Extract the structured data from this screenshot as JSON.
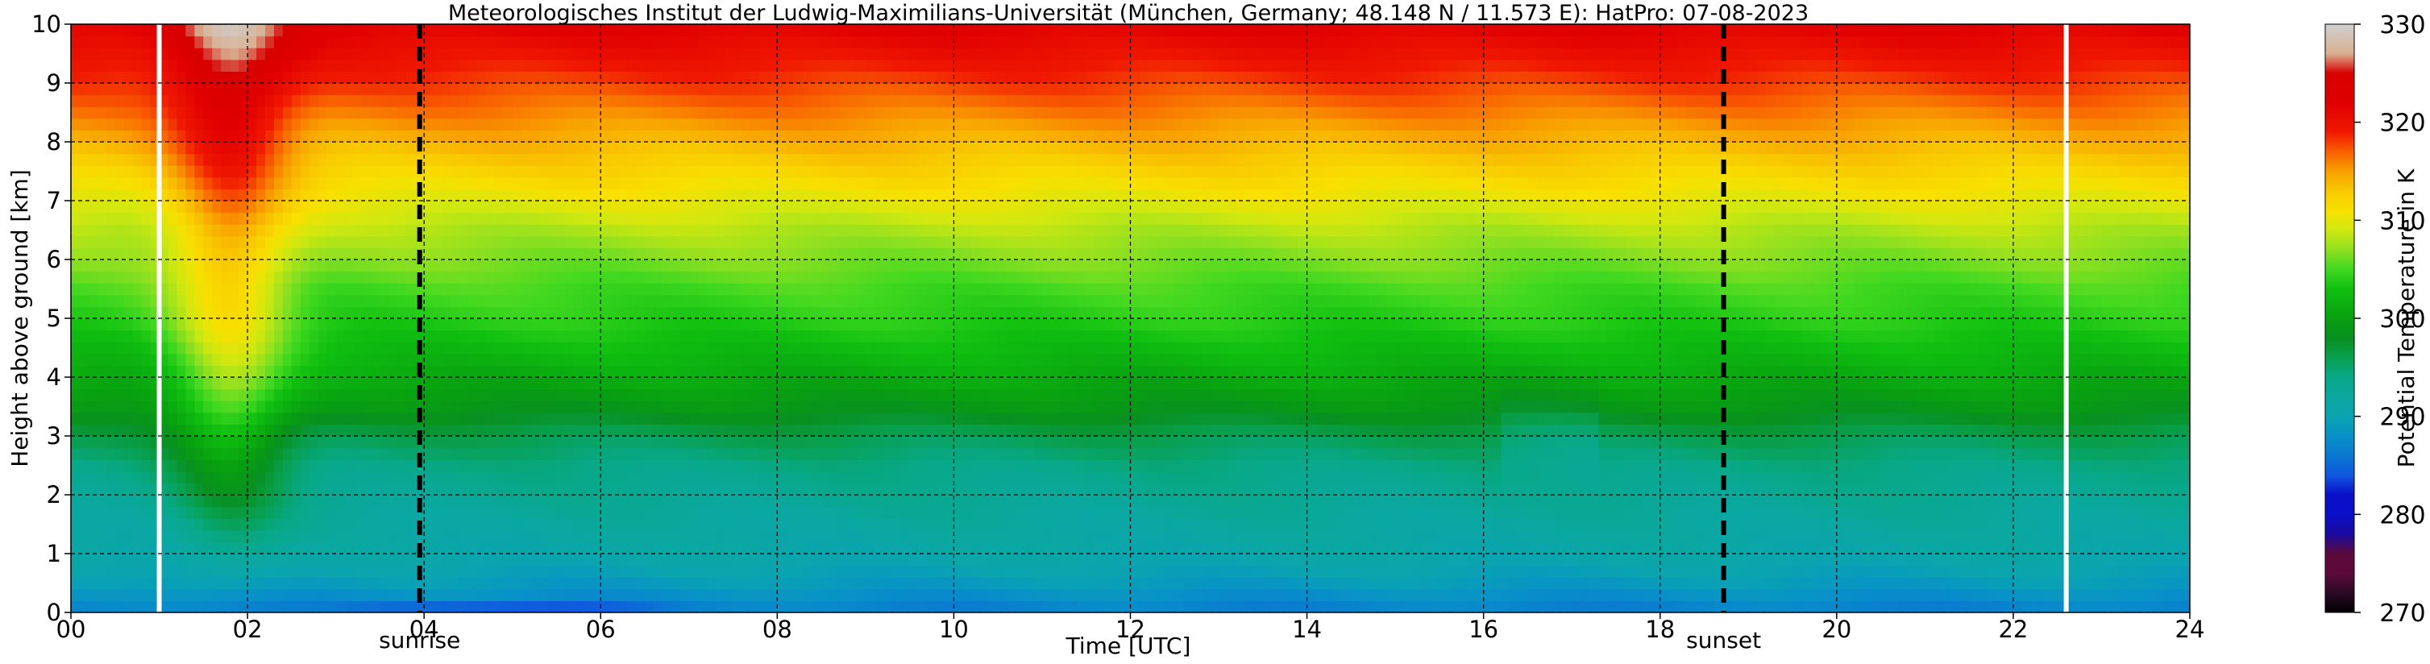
{
  "chart_data": {
    "type": "heatmap",
    "title": "Meteorologisches Institut der Ludwig-Maximilians-Universität (München, Germany; 48.148 N / 11.573 E):    HatPro: 07-08-2023",
    "xlabel": "Time [UTC]",
    "ylabel": "Height above ground [km]",
    "xlim": [
      0,
      24
    ],
    "ylim": [
      0,
      10
    ],
    "x_ticks": [
      0,
      2,
      4,
      6,
      8,
      10,
      12,
      14,
      16,
      18,
      20,
      22,
      24
    ],
    "x_tick_labels": [
      "00",
      "02",
      "04",
      "06",
      "08",
      "10",
      "12",
      "14",
      "16",
      "18",
      "20",
      "22",
      "24"
    ],
    "y_ticks": [
      0,
      1,
      2,
      3,
      4,
      5,
      6,
      7,
      8,
      9,
      10
    ],
    "y_tick_labels": [
      "0",
      "1",
      "2",
      "3",
      "4",
      "5",
      "6",
      "7",
      "8",
      "9",
      "10"
    ],
    "grid": true,
    "colorbar": {
      "label": "Potential Temperature in K",
      "range": [
        270,
        330
      ],
      "ticks": [
        270,
        280,
        290,
        300,
        310,
        320,
        330
      ],
      "tick_labels": [
        "270",
        "280",
        "290",
        "300",
        "310",
        "320",
        "330"
      ]
    },
    "markers": [
      {
        "label": "sunrise",
        "time": 3.95,
        "style": "dashed"
      },
      {
        "label": "sunset",
        "time": 18.72,
        "style": "dashed"
      }
    ],
    "data_gaps": [
      1.0,
      22.6
    ],
    "field_profile": {
      "heights_km": [
        0,
        0.5,
        1,
        1.5,
        2,
        2.5,
        3,
        3.5,
        4,
        4.5,
        5,
        5.5,
        6,
        6.5,
        7,
        7.5,
        8,
        8.5,
        9,
        9.5,
        10
      ],
      "potential_temperature_K": [
        286.5,
        289,
        291,
        292,
        293,
        294,
        296,
        299,
        301,
        302.5,
        304,
        305,
        306.5,
        308,
        310,
        312,
        314,
        316,
        318,
        320,
        322
      ]
    },
    "features": [
      {
        "description": "warm, deep anomaly",
        "time_range": [
          1.0,
          3.0
        ],
        "peak_time": 1.8
      },
      {
        "description": "cold surface layer",
        "time_range": [
          2.7,
          7.0
        ],
        "min_value_K": 280
      },
      {
        "description": "slight cold dip",
        "time_range": [
          16.0,
          17.5
        ]
      }
    ]
  }
}
